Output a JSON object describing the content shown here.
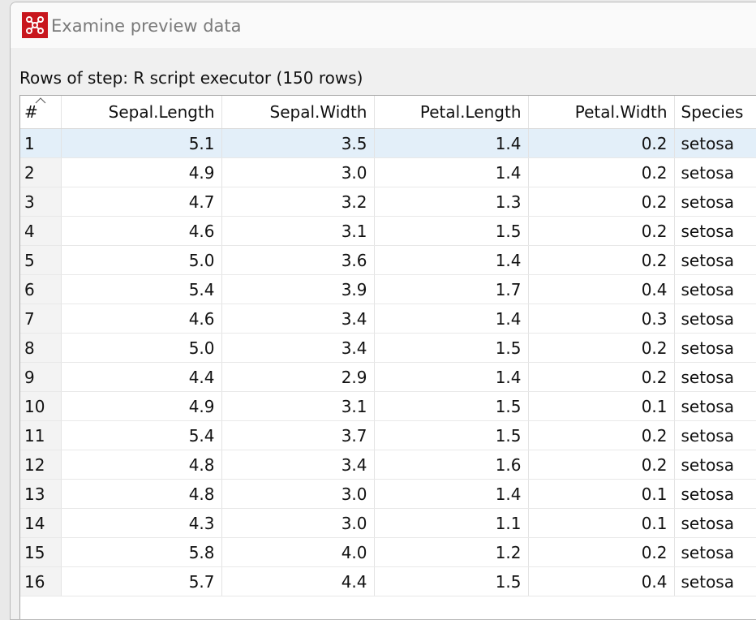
{
  "window": {
    "title": "Examine preview data"
  },
  "caption": "Rows of step: R script executor (150 rows)",
  "table": {
    "columns": [
      "#",
      "Sepal.Length",
      "Sepal.Width",
      "Petal.Length",
      "Petal.Width",
      "Species"
    ],
    "rows": [
      [
        "1",
        "5.1",
        "3.5",
        "1.4",
        "0.2",
        "setosa"
      ],
      [
        "2",
        "4.9",
        "3.0",
        "1.4",
        "0.2",
        "setosa"
      ],
      [
        "3",
        "4.7",
        "3.2",
        "1.3",
        "0.2",
        "setosa"
      ],
      [
        "4",
        "4.6",
        "3.1",
        "1.5",
        "0.2",
        "setosa"
      ],
      [
        "5",
        "5.0",
        "3.6",
        "1.4",
        "0.2",
        "setosa"
      ],
      [
        "6",
        "5.4",
        "3.9",
        "1.7",
        "0.4",
        "setosa"
      ],
      [
        "7",
        "4.6",
        "3.4",
        "1.4",
        "0.3",
        "setosa"
      ],
      [
        "8",
        "5.0",
        "3.4",
        "1.5",
        "0.2",
        "setosa"
      ],
      [
        "9",
        "4.4",
        "2.9",
        "1.4",
        "0.2",
        "setosa"
      ],
      [
        "10",
        "4.9",
        "3.1",
        "1.5",
        "0.1",
        "setosa"
      ],
      [
        "11",
        "5.4",
        "3.7",
        "1.5",
        "0.2",
        "setosa"
      ],
      [
        "12",
        "4.8",
        "3.4",
        "1.6",
        "0.2",
        "setosa"
      ],
      [
        "13",
        "4.8",
        "3.0",
        "1.4",
        "0.1",
        "setosa"
      ],
      [
        "14",
        "4.3",
        "3.0",
        "1.1",
        "0.1",
        "setosa"
      ],
      [
        "15",
        "5.8",
        "4.0",
        "1.2",
        "0.2",
        "setosa"
      ],
      [
        "16",
        "5.7",
        "4.4",
        "1.5",
        "0.4",
        "setosa"
      ]
    ]
  }
}
